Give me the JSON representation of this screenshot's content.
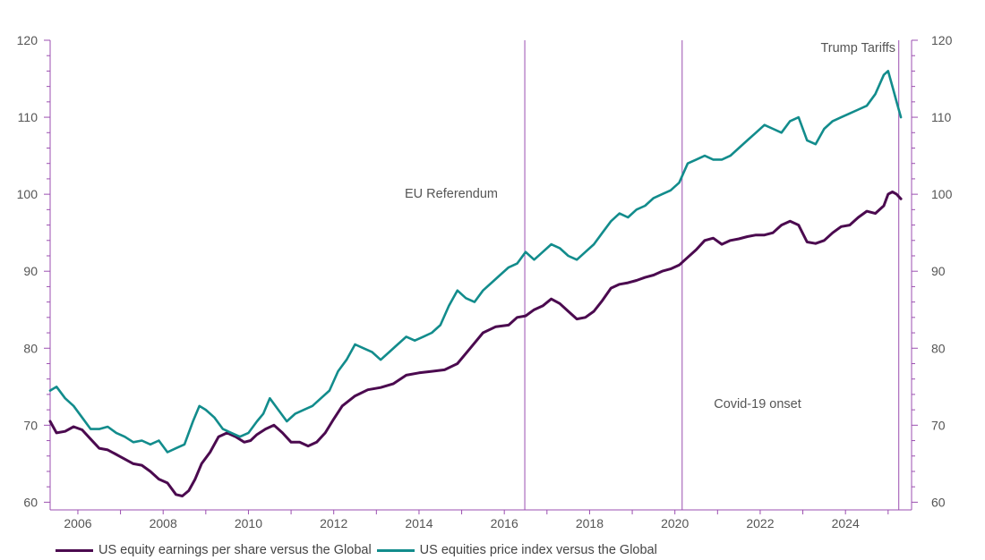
{
  "chart_data": {
    "type": "line",
    "x_tick_labels": [
      "2006",
      "2008",
      "2010",
      "2012",
      "2014",
      "2016",
      "2018",
      "2020",
      "2022",
      "2024"
    ],
    "y_ticks": [
      60,
      70,
      80,
      90,
      100,
      110,
      120
    ],
    "ylim": [
      59,
      120
    ],
    "xlim": [
      2005.35,
      2025.55
    ],
    "grid": false,
    "legend_position": "bottom",
    "colors": {
      "earnings": "#4b0a4f",
      "price": "#128c8c",
      "event_line": "#9b4fb0"
    },
    "events": [
      {
        "label": "EU Referendum",
        "x": 2016.48
      },
      {
        "label": "Covid-19 onset",
        "x": 2020.17
      },
      {
        "label": "Trump Tariffs",
        "x": 2025.25
      }
    ],
    "series": [
      {
        "name": "US equity earnings per share versus the Global",
        "x": [
          2005.35,
          2005.5,
          2005.7,
          2005.9,
          2006.1,
          2006.3,
          2006.5,
          2006.7,
          2006.9,
          2007.1,
          2007.3,
          2007.5,
          2007.7,
          2007.9,
          2008.1,
          2008.3,
          2008.45,
          2008.6,
          2008.75,
          2008.9,
          2009.1,
          2009.3,
          2009.5,
          2009.7,
          2009.9,
          2010.05,
          2010.2,
          2010.4,
          2010.6,
          2010.8,
          2011.0,
          2011.2,
          2011.4,
          2011.6,
          2011.8,
          2012.0,
          2012.2,
          2012.5,
          2012.8,
          2013.1,
          2013.4,
          2013.7,
          2014.0,
          2014.3,
          2014.6,
          2014.9,
          2015.2,
          2015.5,
          2015.8,
          2016.1,
          2016.3,
          2016.5,
          2016.7,
          2016.9,
          2017.1,
          2017.3,
          2017.5,
          2017.7,
          2017.9,
          2018.1,
          2018.3,
          2018.5,
          2018.7,
          2018.9,
          2019.1,
          2019.3,
          2019.5,
          2019.7,
          2019.9,
          2020.1,
          2020.3,
          2020.5,
          2020.7,
          2020.9,
          2021.1,
          2021.3,
          2021.5,
          2021.7,
          2021.9,
          2022.1,
          2022.3,
          2022.5,
          2022.7,
          2022.9,
          2023.1,
          2023.3,
          2023.5,
          2023.7,
          2023.9,
          2024.1,
          2024.3,
          2024.5,
          2024.7,
          2024.9,
          2025.0,
          2025.1,
          2025.2,
          2025.3
        ],
        "values": [
          70.5,
          69.0,
          69.2,
          69.8,
          69.4,
          68.2,
          67.0,
          66.8,
          66.2,
          65.6,
          65.0,
          64.8,
          64.0,
          63.0,
          62.5,
          61.0,
          60.8,
          61.5,
          63.0,
          65.0,
          66.5,
          68.5,
          69.0,
          68.5,
          67.8,
          68.0,
          68.8,
          69.5,
          70.0,
          69.0,
          67.8,
          67.8,
          67.3,
          67.8,
          69.0,
          70.8,
          72.5,
          73.8,
          74.6,
          74.9,
          75.4,
          76.5,
          76.8,
          77.0,
          77.2,
          78.0,
          80.0,
          82.0,
          82.8,
          83.0,
          84.0,
          84.2,
          85.0,
          85.5,
          86.4,
          85.8,
          84.8,
          83.8,
          84.0,
          84.8,
          86.2,
          87.8,
          88.3,
          88.5,
          88.8,
          89.2,
          89.5,
          90.0,
          90.3,
          90.8,
          91.8,
          92.8,
          94.0,
          94.3,
          93.5,
          94.0,
          94.2,
          94.5,
          94.7,
          94.7,
          95.0,
          96.0,
          96.5,
          96.0,
          93.8,
          93.6,
          94.0,
          95.0,
          95.8,
          96.0,
          97.0,
          97.8,
          97.5,
          98.5,
          100.0,
          100.3,
          100.0,
          99.4
        ]
      },
      {
        "name": "US equities price index versus the Global",
        "x": [
          2005.35,
          2005.5,
          2005.7,
          2005.9,
          2006.1,
          2006.3,
          2006.5,
          2006.7,
          2006.9,
          2007.1,
          2007.3,
          2007.5,
          2007.7,
          2007.9,
          2008.1,
          2008.3,
          2008.5,
          2008.7,
          2008.85,
          2009.0,
          2009.2,
          2009.4,
          2009.6,
          2009.8,
          2010.0,
          2010.2,
          2010.35,
          2010.5,
          2010.7,
          2010.9,
          2011.1,
          2011.3,
          2011.5,
          2011.7,
          2011.9,
          2012.1,
          2012.3,
          2012.5,
          2012.7,
          2012.9,
          2013.1,
          2013.3,
          2013.5,
          2013.7,
          2013.9,
          2014.1,
          2014.3,
          2014.5,
          2014.7,
          2014.9,
          2015.1,
          2015.3,
          2015.5,
          2015.7,
          2015.9,
          2016.1,
          2016.3,
          2016.5,
          2016.7,
          2016.9,
          2017.1,
          2017.3,
          2017.5,
          2017.7,
          2017.9,
          2018.1,
          2018.3,
          2018.5,
          2018.7,
          2018.9,
          2019.1,
          2019.3,
          2019.5,
          2019.7,
          2019.9,
          2020.1,
          2020.3,
          2020.5,
          2020.7,
          2020.9,
          2021.1,
          2021.3,
          2021.5,
          2021.7,
          2021.9,
          2022.1,
          2022.3,
          2022.5,
          2022.7,
          2022.9,
          2023.1,
          2023.3,
          2023.5,
          2023.7,
          2023.9,
          2024.1,
          2024.3,
          2024.5,
          2024.7,
          2024.9,
          2025.0,
          2025.1,
          2025.2,
          2025.3
        ],
        "values": [
          74.5,
          75.0,
          73.5,
          72.5,
          71.0,
          69.5,
          69.5,
          69.8,
          69.0,
          68.5,
          67.8,
          68.0,
          67.5,
          68.0,
          66.5,
          67.0,
          67.5,
          70.5,
          72.5,
          72.0,
          71.0,
          69.5,
          69.0,
          68.5,
          69.0,
          70.5,
          71.5,
          73.5,
          72.0,
          70.5,
          71.5,
          72.0,
          72.5,
          73.5,
          74.5,
          77.0,
          78.5,
          80.5,
          80.0,
          79.5,
          78.5,
          79.5,
          80.5,
          81.5,
          81.0,
          81.5,
          82.0,
          83.0,
          85.5,
          87.5,
          86.5,
          86.0,
          87.5,
          88.5,
          89.5,
          90.5,
          91.0,
          92.5,
          91.5,
          92.5,
          93.5,
          93.0,
          92.0,
          91.5,
          92.5,
          93.5,
          95.0,
          96.5,
          97.5,
          97.0,
          98.0,
          98.5,
          99.5,
          100.0,
          100.5,
          101.5,
          104.0,
          104.5,
          105.0,
          104.5,
          104.5,
          105.0,
          106.0,
          107.0,
          108.0,
          109.0,
          108.5,
          108.0,
          109.5,
          110.0,
          107.0,
          106.5,
          108.5,
          109.5,
          110.0,
          110.5,
          111.0,
          111.5,
          113.0,
          115.5,
          116.0,
          114.0,
          112.0,
          110.0
        ]
      }
    ]
  }
}
